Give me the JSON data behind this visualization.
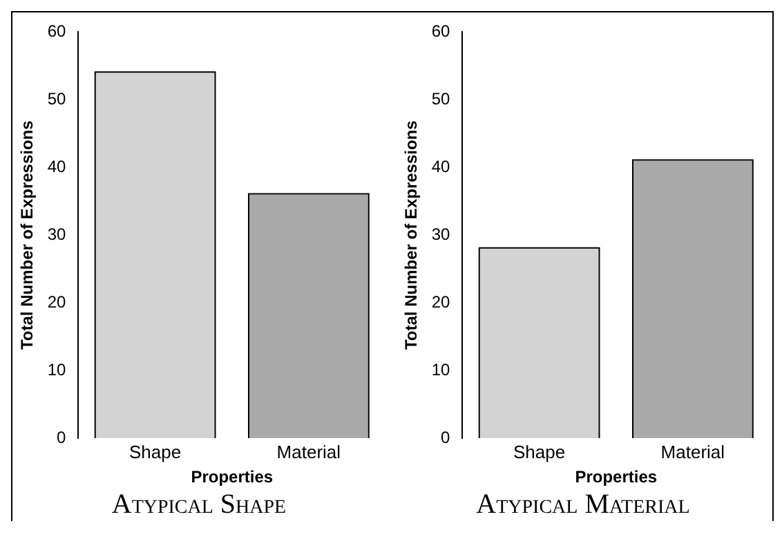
{
  "chart_data": [
    {
      "type": "bar",
      "title": "Atypical Shape",
      "xlabel": "Properties",
      "ylabel": "Total Number of Expressions",
      "categories": [
        "Shape",
        "Material"
      ],
      "values": [
        54,
        36
      ],
      "colors": [
        "#d3d3d3",
        "#a9a9a9"
      ],
      "ylim": [
        0,
        60
      ],
      "yticks": [
        0,
        10,
        20,
        30,
        40,
        50,
        60
      ],
      "grid": false,
      "legend": false
    },
    {
      "type": "bar",
      "title": "Atypical Material",
      "xlabel": "Properties",
      "ylabel": "Total Number of Expressions",
      "categories": [
        "Shape",
        "Material"
      ],
      "values": [
        28,
        41
      ],
      "colors": [
        "#d3d3d3",
        "#a9a9a9"
      ],
      "ylim": [
        0,
        60
      ],
      "yticks": [
        0,
        10,
        20,
        30,
        40,
        50,
        60
      ],
      "grid": false,
      "legend": false
    }
  ]
}
